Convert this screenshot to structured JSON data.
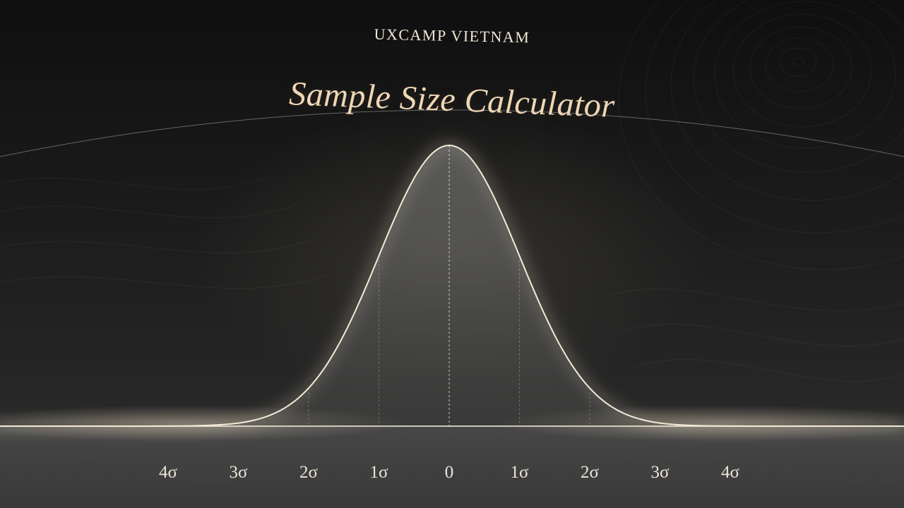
{
  "header": {
    "brand": "UXCAMP VIETNAM",
    "title": "Sample Size Calculator"
  },
  "chart_data": {
    "type": "line",
    "distribution": "normal",
    "mean_label": "0",
    "x_tick_labels": [
      "4σ",
      "3σ",
      "2σ",
      "1σ",
      "0",
      "1σ",
      "2σ",
      "3σ",
      "4σ"
    ],
    "x_ticks": [
      -4,
      -3,
      -2,
      -1,
      0,
      1,
      2,
      3,
      4
    ],
    "xlim": [
      -4,
      4
    ],
    "grid": false,
    "legend": "none"
  },
  "colors": {
    "title": "#efd7b4",
    "brand": "#efe7d8",
    "curve": "#f3ead8",
    "background": "#1a1a1a"
  }
}
